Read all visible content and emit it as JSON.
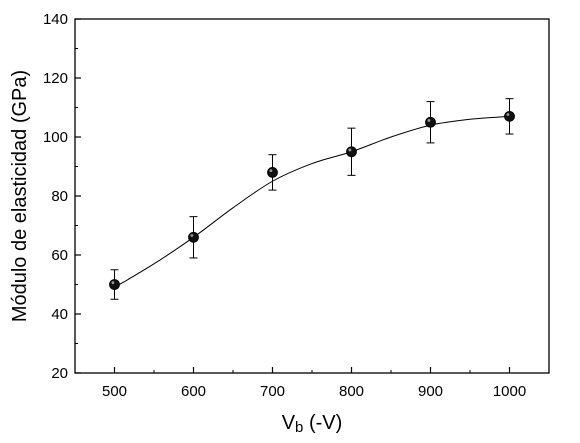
{
  "chart_data": {
    "type": "scatter",
    "title": "",
    "xlabel": "Vb (-V)",
    "xlabel_main": "V",
    "xlabel_sub": "b",
    "xlabel_rest": " (-V)",
    "ylabel": "Módulo de elasticidad (GPa)",
    "xlim": [
      450,
      1050
    ],
    "ylim": [
      20,
      140
    ],
    "x_ticks": [
      500,
      600,
      700,
      800,
      900,
      1000
    ],
    "y_ticks": [
      20,
      40,
      60,
      80,
      100,
      120,
      140
    ],
    "grid": false,
    "legend": "none",
    "series": [
      {
        "x": [
          500,
          600,
          700,
          800,
          900,
          1000
        ],
        "y": [
          50,
          66,
          88,
          95,
          105,
          107
        ],
        "err_low": [
          45,
          59,
          82,
          87,
          98,
          101
        ],
        "err_high": [
          55,
          73,
          94,
          103,
          112,
          113
        ]
      }
    ],
    "fit_line": {
      "x": [
        500,
        550,
        600,
        650,
        700,
        750,
        800,
        850,
        900,
        950,
        1000
      ],
      "y": [
        49,
        57,
        66,
        76,
        85,
        91,
        95,
        100,
        104,
        106,
        107
      ]
    },
    "colors": {
      "marker": "#111111",
      "line": "#000000"
    }
  }
}
